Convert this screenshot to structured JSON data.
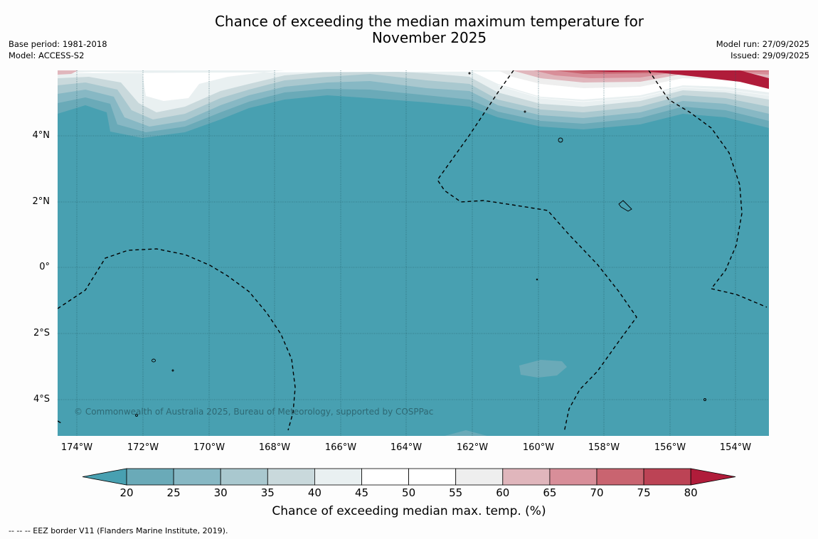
{
  "title_line1": "Chance of exceeding the median maximum temperature for",
  "title_line2": "November 2025",
  "meta_left": [
    "Base period: 1981-2018",
    "Model: ACCESS-S2"
  ],
  "meta_right": [
    "Model run: 27/09/2025",
    "Issued: 29/09/2025"
  ],
  "map": {
    "lat_labels": [
      "4°N",
      "2°N",
      "0°",
      "2°S",
      "4°S"
    ],
    "lon_labels": [
      "174°W",
      "172°W",
      "170°W",
      "168°W",
      "166°W",
      "164°W",
      "162°W",
      "160°W",
      "158°W",
      "156°W",
      "154°W"
    ],
    "base_color": "#48a0b1",
    "copyright": "© Commonwealth of Australia 2025, Bureau of Meteorology, supported by COSPPac"
  },
  "colorbar": {
    "ticks": [
      "20",
      "25",
      "30",
      "35",
      "40",
      "45",
      "50",
      "55",
      "60",
      "65",
      "70",
      "75",
      "80"
    ],
    "colors": [
      "#6aaab8",
      "#87b8c4",
      "#a9c8cf",
      "#c9d9dc",
      "#e9f0f1",
      "#ffffff",
      "#ffffff",
      "#eeeeee",
      "#e0b6bc",
      "#d88e99",
      "#c96470",
      "#bc4355"
    ],
    "low_extend_color": "#48a0b1",
    "high_extend_color": "#b01c3a",
    "label": "Chance of exceeding median max. temp. (%)"
  },
  "footnote": "--  --  -- EEZ border V11 (Flanders Marine Institute, 2019)."
}
